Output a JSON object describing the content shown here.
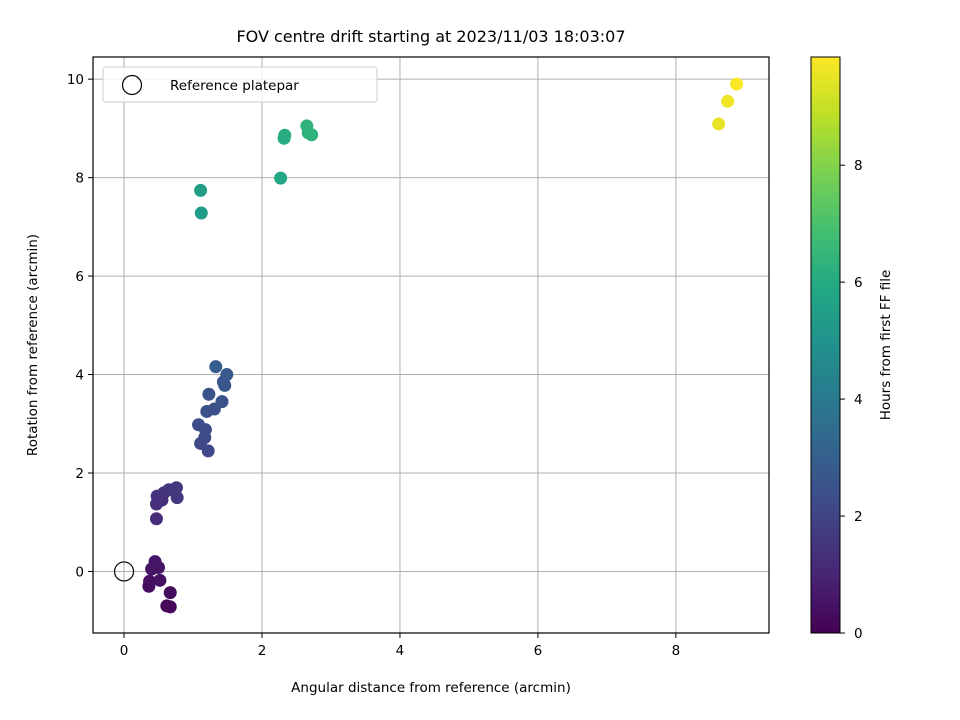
{
  "chart_data": {
    "type": "scatter",
    "title": "FOV centre drift starting at 2023/11/03 18:03:07",
    "xlabel": "Angular distance from reference (arcmin)",
    "ylabel": "Rotation from reference (arcmin)",
    "xlim": [
      -0.45,
      9.35
    ],
    "ylim": [
      -1.25,
      10.45
    ],
    "xticks": [
      0,
      2,
      4,
      6,
      8
    ],
    "yticks": [
      0,
      2,
      4,
      6,
      8,
      10
    ],
    "grid": true,
    "legend": {
      "placement": "top-left",
      "entries": [
        "Reference platepar"
      ]
    },
    "reference_point": {
      "x": 0,
      "y": 0
    },
    "colormap": "viridis",
    "colorbar": {
      "label": "Hours from first FF file",
      "range": [
        0,
        9.85
      ],
      "ticks": [
        0,
        2,
        4,
        6,
        8
      ]
    },
    "points": [
      {
        "x": 0.62,
        "y": -0.7,
        "t": 0.15
      },
      {
        "x": 0.67,
        "y": -0.72,
        "t": 0.2
      },
      {
        "x": 0.67,
        "y": -0.43,
        "t": 0.3
      },
      {
        "x": 0.36,
        "y": -0.3,
        "t": 0.35
      },
      {
        "x": 0.37,
        "y": -0.2,
        "t": 0.4
      },
      {
        "x": 0.52,
        "y": -0.18,
        "t": 0.45
      },
      {
        "x": 0.4,
        "y": 0.05,
        "t": 0.5
      },
      {
        "x": 0.5,
        "y": 0.08,
        "t": 0.55
      },
      {
        "x": 0.45,
        "y": 0.2,
        "t": 0.6
      },
      {
        "x": 0.47,
        "y": 1.07,
        "t": 1.2
      },
      {
        "x": 0.47,
        "y": 1.37,
        "t": 1.3
      },
      {
        "x": 0.55,
        "y": 1.45,
        "t": 1.35
      },
      {
        "x": 0.48,
        "y": 1.53,
        "t": 1.4
      },
      {
        "x": 0.58,
        "y": 1.6,
        "t": 1.45
      },
      {
        "x": 0.65,
        "y": 1.66,
        "t": 1.5
      },
      {
        "x": 0.76,
        "y": 1.7,
        "t": 1.55
      },
      {
        "x": 0.77,
        "y": 1.5,
        "t": 1.6
      },
      {
        "x": 1.22,
        "y": 2.45,
        "t": 2.1
      },
      {
        "x": 1.11,
        "y": 2.6,
        "t": 2.15
      },
      {
        "x": 1.17,
        "y": 2.72,
        "t": 2.2
      },
      {
        "x": 1.18,
        "y": 2.88,
        "t": 2.25
      },
      {
        "x": 1.08,
        "y": 2.98,
        "t": 2.3
      },
      {
        "x": 1.2,
        "y": 3.25,
        "t": 2.4
      },
      {
        "x": 1.31,
        "y": 3.3,
        "t": 2.45
      },
      {
        "x": 1.42,
        "y": 3.45,
        "t": 2.55
      },
      {
        "x": 1.23,
        "y": 3.6,
        "t": 2.5
      },
      {
        "x": 1.46,
        "y": 3.78,
        "t": 2.65
      },
      {
        "x": 1.44,
        "y": 3.85,
        "t": 2.6
      },
      {
        "x": 1.49,
        "y": 4.0,
        "t": 2.75
      },
      {
        "x": 1.33,
        "y": 4.16,
        "t": 2.85
      },
      {
        "x": 1.12,
        "y": 7.28,
        "t": 5.4
      },
      {
        "x": 1.11,
        "y": 7.74,
        "t": 5.5
      },
      {
        "x": 2.27,
        "y": 7.99,
        "t": 5.9
      },
      {
        "x": 2.32,
        "y": 8.8,
        "t": 6.0
      },
      {
        "x": 2.33,
        "y": 8.86,
        "t": 6.05
      },
      {
        "x": 2.67,
        "y": 8.91,
        "t": 6.2
      },
      {
        "x": 2.72,
        "y": 8.87,
        "t": 6.3
      },
      {
        "x": 2.65,
        "y": 9.05,
        "t": 6.35
      },
      {
        "x": 8.62,
        "y": 9.09,
        "t": 9.5
      },
      {
        "x": 8.75,
        "y": 9.55,
        "t": 9.65
      },
      {
        "x": 8.88,
        "y": 9.9,
        "t": 9.8
      }
    ]
  }
}
